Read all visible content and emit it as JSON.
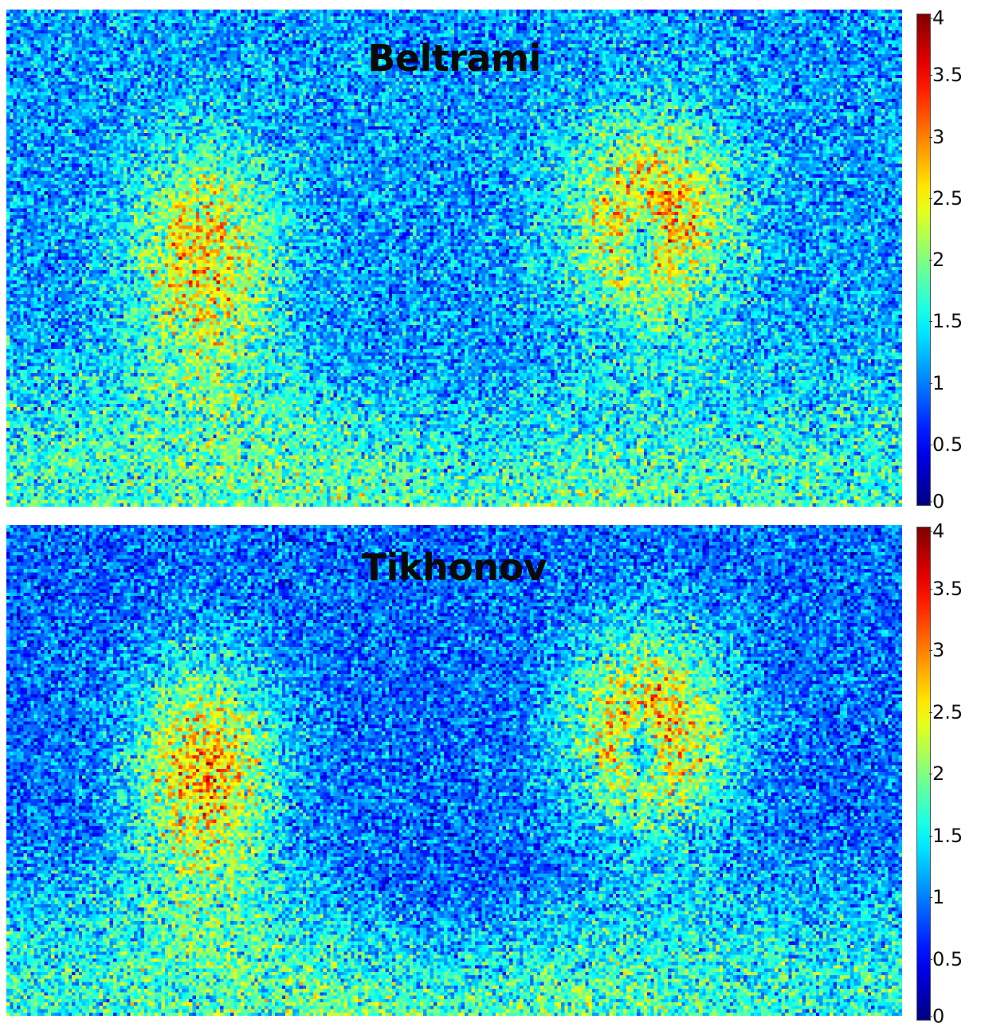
{
  "chart_data": [
    {
      "type": "heatmap",
      "title": "Beltrami",
      "colormap": "jet",
      "colorbar_ticks": [
        "0",
        "0.5",
        "1",
        "1.5",
        "2",
        "2.5",
        "3",
        "3.5",
        "4"
      ],
      "value_range": [
        0,
        4
      ],
      "background_level": 1.1,
      "features": [
        {
          "label": "left peak",
          "level": 2.6
        },
        {
          "label": "right peak",
          "level": 2.8
        },
        {
          "label": "lower band",
          "level": 1.9
        }
      ]
    },
    {
      "type": "heatmap",
      "title": "Tikhonov",
      "colormap": "jet",
      "colorbar_ticks": [
        "0",
        "0.5",
        "1",
        "1.5",
        "2",
        "2.5",
        "3",
        "3.5",
        "4"
      ],
      "value_range": [
        0,
        4
      ],
      "background_level": 0.9,
      "features": [
        {
          "label": "left peak",
          "level": 2.7
        },
        {
          "label": "right peak",
          "level": 2.8
        },
        {
          "label": "lower band",
          "level": 1.9
        }
      ]
    }
  ]
}
